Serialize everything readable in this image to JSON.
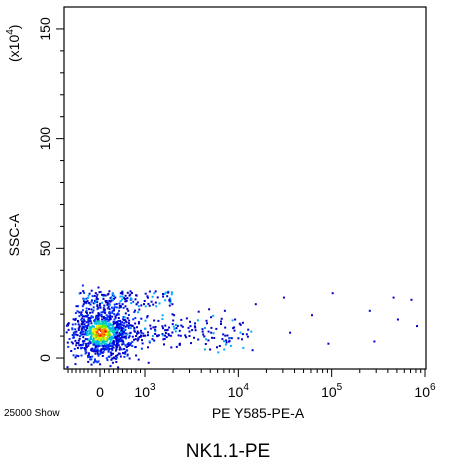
{
  "chart_data": {
    "type": "scatter",
    "title": "NK1.1-PE",
    "xlabel": "PE Y585-PE-A",
    "ylabel": "SSC-A",
    "y_multiplier": "(x10",
    "y_multiplier_exp": "4",
    "y_multiplier_close": ")",
    "event_count": "25000 Show",
    "x_scale": "biexponential",
    "ylim": [
      -5,
      160
    ],
    "x_ticks": [
      {
        "base": "0",
        "exp": "",
        "value": 0
      },
      {
        "base": "10",
        "exp": "3",
        "value": 1000
      },
      {
        "base": "10",
        "exp": "4",
        "value": 10000
      },
      {
        "base": "10",
        "exp": "5",
        "value": 100000
      },
      {
        "base": "10",
        "exp": "6",
        "value": 1000000
      }
    ],
    "y_ticks": [
      {
        "label": "0",
        "value": 0
      },
      {
        "label": "50",
        "value": 50
      },
      {
        "label": "100",
        "value": 100
      },
      {
        "label": "150",
        "value": 150
      }
    ],
    "density_colors": [
      "#0000cc",
      "#0033ff",
      "#00aaff",
      "#00ddaa",
      "#66ee00",
      "#ffee00",
      "#ff8800",
      "#ff0000"
    ],
    "main_population": {
      "x_center": 0,
      "y_center": 12,
      "note_points": 25000
    },
    "outliers": [
      {
        "x": 2000,
        "y": 20
      },
      {
        "x": 3000,
        "y": 15
      },
      {
        "x": 5000,
        "y": 12
      },
      {
        "x": 7000,
        "y": 22
      },
      {
        "x": 9000,
        "y": 18
      },
      {
        "x": 15000,
        "y": 25
      },
      {
        "x": 30000,
        "y": 28
      },
      {
        "x": 35000,
        "y": 12
      },
      {
        "x": 60000,
        "y": 20
      },
      {
        "x": 100000,
        "y": 30
      },
      {
        "x": 90000,
        "y": 7
      },
      {
        "x": 250000,
        "y": 22
      },
      {
        "x": 280000,
        "y": 8
      },
      {
        "x": 450000,
        "y": 28
      },
      {
        "x": 500000,
        "y": 18
      },
      {
        "x": 700000,
        "y": 27
      },
      {
        "x": 800000,
        "y": 15
      }
    ]
  }
}
